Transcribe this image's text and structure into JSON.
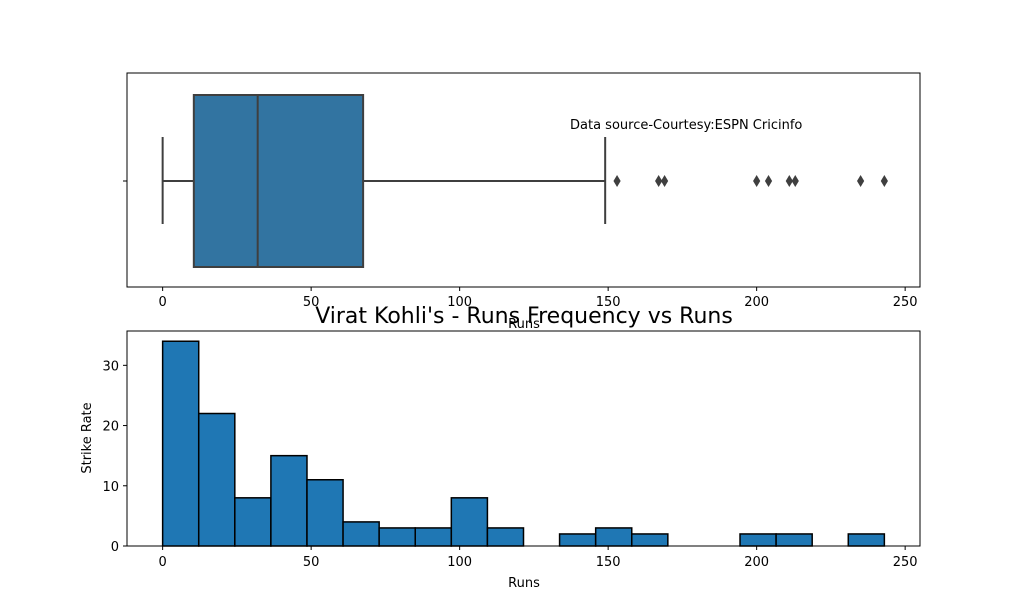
{
  "chart_data": [
    {
      "type": "box",
      "annotation": "Data source-Courtesy:ESPN Cricinfo",
      "xlabel": "Runs",
      "xlim": [
        -12,
        255
      ],
      "xticks": [
        0,
        50,
        100,
        150,
        200,
        250
      ],
      "box": {
        "whisker_low": 0,
        "q1": 10.5,
        "median": 32,
        "q3": 67.5,
        "whisker_high": 149,
        "color": "#3274a1",
        "outliers": [
          153,
          167,
          169,
          200,
          204,
          211,
          213,
          235,
          243
        ]
      }
    },
    {
      "type": "bar",
      "title": "Virat Kohli's - Runs Frequency vs Runs",
      "xlabel": "Runs",
      "ylabel": "Strike Rate",
      "xlim": [
        -12,
        255
      ],
      "ylim": [
        0,
        35.7
      ],
      "xticks": [
        0,
        50,
        100,
        150,
        200,
        250
      ],
      "yticks": [
        0,
        10,
        20,
        30
      ],
      "color": "#1f77b4",
      "bins": [
        {
          "start": 0,
          "end": 12.15,
          "count": 34
        },
        {
          "start": 12.15,
          "end": 24.3,
          "count": 22
        },
        {
          "start": 24.3,
          "end": 36.45,
          "count": 8
        },
        {
          "start": 36.45,
          "end": 48.6,
          "count": 15
        },
        {
          "start": 48.6,
          "end": 60.75,
          "count": 11
        },
        {
          "start": 60.75,
          "end": 72.9,
          "count": 4
        },
        {
          "start": 72.9,
          "end": 85.05,
          "count": 3
        },
        {
          "start": 85.05,
          "end": 97.2,
          "count": 3
        },
        {
          "start": 97.2,
          "end": 109.35,
          "count": 8
        },
        {
          "start": 109.35,
          "end": 121.5,
          "count": 3
        },
        {
          "start": 121.5,
          "end": 133.65,
          "count": 0
        },
        {
          "start": 133.65,
          "end": 145.8,
          "count": 2
        },
        {
          "start": 145.8,
          "end": 157.95,
          "count": 3
        },
        {
          "start": 157.95,
          "end": 170.1,
          "count": 2
        },
        {
          "start": 170.1,
          "end": 182.25,
          "count": 0
        },
        {
          "start": 182.25,
          "end": 194.4,
          "count": 0
        },
        {
          "start": 194.4,
          "end": 206.55,
          "count": 2
        },
        {
          "start": 206.55,
          "end": 218.7,
          "count": 2
        },
        {
          "start": 218.7,
          "end": 230.85,
          "count": 0
        },
        {
          "start": 230.85,
          "end": 243,
          "count": 2
        }
      ]
    }
  ]
}
